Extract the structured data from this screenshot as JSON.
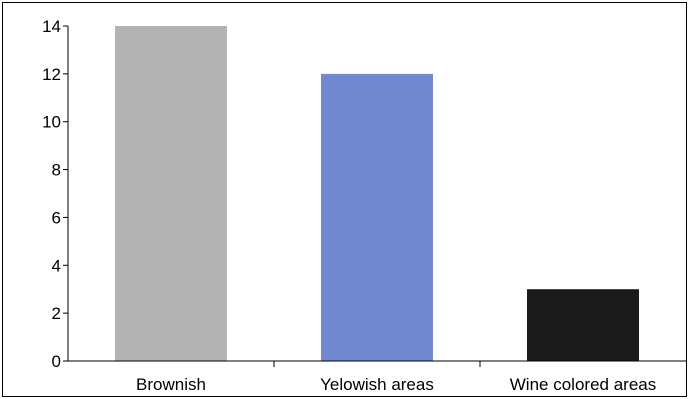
{
  "chart_data": {
    "type": "bar",
    "title": "",
    "xlabel": "",
    "ylabel": "",
    "categories": [
      "Brownish",
      "Yelowish areas",
      "Wine colored areas"
    ],
    "values": [
      14,
      12,
      3
    ],
    "bar_colors": [
      "#b3b3b3",
      "#6f88d0",
      "#1a1a1a"
    ],
    "ylim": [
      0,
      14
    ],
    "yticks": [
      0,
      2,
      4,
      6,
      8,
      10,
      12,
      14
    ],
    "ytick_labels": [
      "0",
      "2",
      "4",
      "6",
      "8",
      "10",
      "12",
      "14"
    ],
    "grid": false,
    "legend": "none"
  }
}
